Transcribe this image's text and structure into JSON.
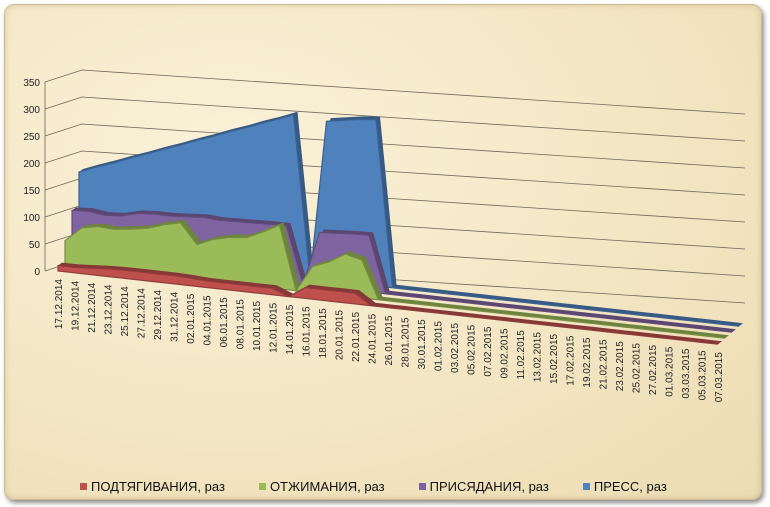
{
  "chart_data": {
    "type": "area",
    "subtype": "3d-area",
    "title": "",
    "xlabel": "",
    "ylabel": "",
    "ylim": [
      0,
      350
    ],
    "yticks": [
      "0",
      "50",
      "100",
      "150",
      "200",
      "250",
      "300",
      "350"
    ],
    "grid": true,
    "legend_position": "bottom",
    "categories": [
      "17.12.2014",
      "19.12.2014",
      "21.12.2014",
      "23.12.2014",
      "25.12.2014",
      "27.12.2014",
      "29.12.2014",
      "31.12.2014",
      "02.01.2015",
      "04.01.2015",
      "06.01.2015",
      "08.01.2015",
      "10.01.2015",
      "12.01.2015",
      "14.01.2015",
      "16.01.2015",
      "18.01.2015",
      "20.01.2015",
      "22.01.2015",
      "24.01.2015",
      "26.01.2015",
      "28.01.2015",
      "30.01.2015",
      "01.02.2015",
      "03.02.2015",
      "05.02.2015",
      "07.02.2015",
      "09.02.2015",
      "11.02.2015",
      "13.02.2015",
      "15.02.2015",
      "17.02.2015",
      "19.02.2015",
      "21.02.2015",
      "23.02.2015",
      "25.02.2015",
      "27.02.2015",
      "01.03.2015",
      "03.03.2015",
      "05.03.2015",
      "07.03.2015"
    ],
    "series": [
      {
        "name": "ПОДТЯГИВАНИЯ, раз",
        "color": "#c0504d",
        "values": [
          10,
          10,
          12,
          14,
          15,
          15,
          15,
          15,
          14,
          12,
          12,
          12,
          12,
          12,
          0,
          20,
          20,
          20,
          20,
          0,
          0,
          0,
          0,
          0,
          0,
          0,
          0,
          0,
          0,
          0,
          0,
          0,
          0,
          0,
          0,
          0,
          0,
          0,
          0,
          0,
          0
        ]
      },
      {
        "name": "ОТЖИМАНИЯ, раз",
        "color": "#9bbb59",
        "values": [
          45,
          72,
          78,
          76,
          80,
          85,
          95,
          102,
          65,
          78,
          85,
          88,
          102,
          118,
          0,
          48,
          60,
          78,
          70,
          0,
          0,
          0,
          0,
          0,
          0,
          0,
          0,
          0,
          0,
          0,
          0,
          0,
          0,
          0,
          0,
          0,
          0,
          0,
          0,
          0,
          0
        ]
      },
      {
        "name": "ПРИСЯДАНИЯ, раз",
        "color": "#8064a2",
        "values": [
          90,
          92,
          88,
          90,
          98,
          100,
          100,
          102,
          104,
          102,
          103,
          104,
          105,
          105,
          0,
          100,
          102,
          104,
          105,
          0,
          0,
          0,
          0,
          0,
          0,
          0,
          0,
          0,
          0,
          0,
          0,
          0,
          0,
          0,
          0,
          0,
          0,
          0,
          0,
          0,
          0
        ]
      },
      {
        "name": "ПРЕСС, раз",
        "color": "#4f81bd",
        "values": [
          150,
          162,
          173,
          185,
          196,
          208,
          219,
          231,
          242,
          254,
          265,
          277,
          288,
          300,
          0,
          295,
          300,
          305,
          308,
          0,
          0,
          0,
          0,
          0,
          0,
          0,
          0,
          0,
          0,
          0,
          0,
          0,
          0,
          0,
          0,
          0,
          0,
          0,
          0,
          0,
          0
        ]
      }
    ]
  }
}
